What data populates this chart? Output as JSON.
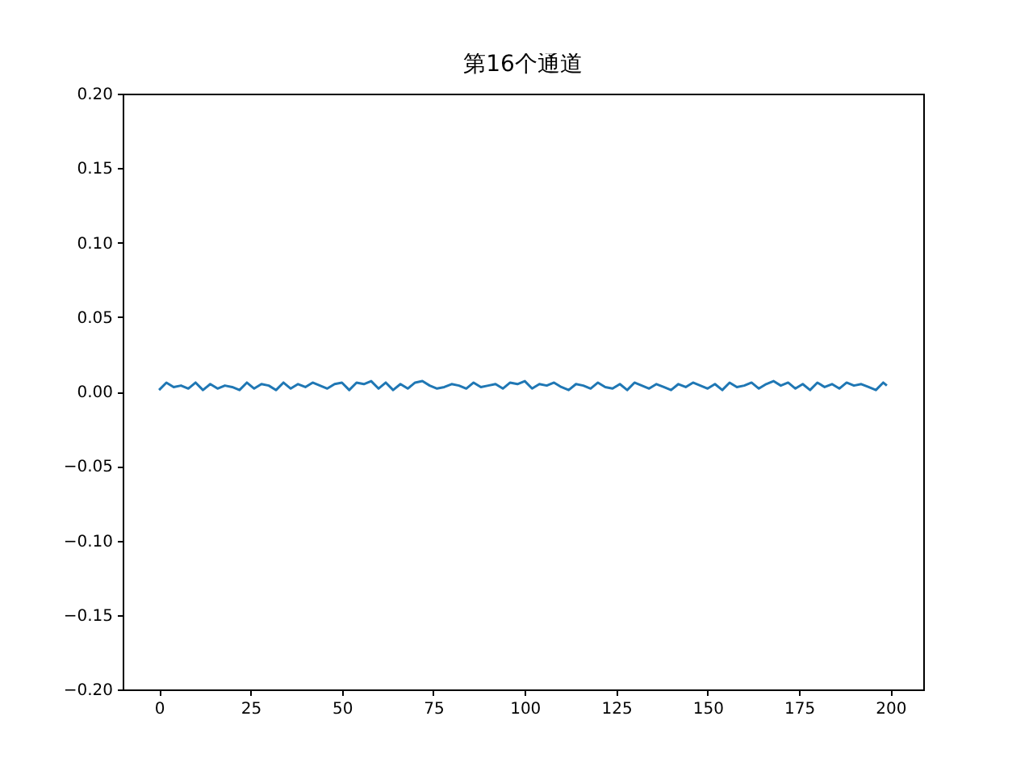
{
  "chart_data": {
    "type": "line",
    "title": "第16个通道",
    "x": [
      0,
      2,
      4,
      6,
      8,
      10,
      12,
      14,
      16,
      18,
      20,
      22,
      24,
      26,
      28,
      30,
      32,
      34,
      36,
      38,
      40,
      42,
      44,
      46,
      48,
      50,
      52,
      54,
      56,
      58,
      60,
      62,
      64,
      66,
      68,
      70,
      72,
      74,
      76,
      78,
      80,
      82,
      84,
      86,
      88,
      90,
      92,
      94,
      96,
      98,
      100,
      102,
      104,
      106,
      108,
      110,
      112,
      114,
      116,
      118,
      120,
      122,
      124,
      126,
      128,
      130,
      132,
      134,
      136,
      138,
      140,
      142,
      144,
      146,
      148,
      150,
      152,
      154,
      156,
      158,
      160,
      162,
      164,
      166,
      168,
      170,
      172,
      174,
      176,
      178,
      180,
      182,
      184,
      186,
      188,
      190,
      192,
      194,
      196,
      198,
      199
    ],
    "series": [
      {
        "color": "#1f77b4",
        "values": [
          0.001,
          0.006,
          0.003,
          0.004,
          0.002,
          0.006,
          0.001,
          0.005,
          0.002,
          0.004,
          0.003,
          0.001,
          0.006,
          0.002,
          0.005,
          0.004,
          0.001,
          0.006,
          0.002,
          0.005,
          0.003,
          0.006,
          0.004,
          0.002,
          0.005,
          0.006,
          0.001,
          0.006,
          0.005,
          0.007,
          0.002,
          0.006,
          0.001,
          0.005,
          0.002,
          0.006,
          0.007,
          0.004,
          0.002,
          0.003,
          0.005,
          0.004,
          0.002,
          0.006,
          0.003,
          0.004,
          0.005,
          0.002,
          0.006,
          0.005,
          0.007,
          0.002,
          0.005,
          0.004,
          0.006,
          0.003,
          0.001,
          0.005,
          0.004,
          0.002,
          0.006,
          0.003,
          0.002,
          0.005,
          0.001,
          0.006,
          0.004,
          0.002,
          0.005,
          0.003,
          0.001,
          0.005,
          0.003,
          0.006,
          0.004,
          0.002,
          0.005,
          0.001,
          0.006,
          0.003,
          0.004,
          0.006,
          0.002,
          0.005,
          0.007,
          0.004,
          0.006,
          0.002,
          0.005,
          0.001,
          0.006,
          0.003,
          0.005,
          0.002,
          0.006,
          0.004,
          0.005,
          0.003,
          0.001,
          0.006,
          0.004
        ]
      }
    ],
    "xlim": [
      -9.95,
      208.95
    ],
    "xticks": [
      0,
      25,
      50,
      75,
      100,
      125,
      150,
      175,
      200
    ],
    "ylim": [
      -0.2,
      0.2
    ],
    "yticks": [
      {
        "value": -0.2,
        "label": "−0.20"
      },
      {
        "value": -0.15,
        "label": "−0.15"
      },
      {
        "value": -0.1,
        "label": "−0.10"
      },
      {
        "value": -0.05,
        "label": "−0.05"
      },
      {
        "value": 0,
        "label": "0.00"
      },
      {
        "value": 0.05,
        "label": "0.05"
      },
      {
        "value": 0.1,
        "label": "0.10"
      },
      {
        "value": 0.15,
        "label": "0.15"
      },
      {
        "value": 0.2,
        "label": "0.20"
      }
    ],
    "grid": false
  }
}
